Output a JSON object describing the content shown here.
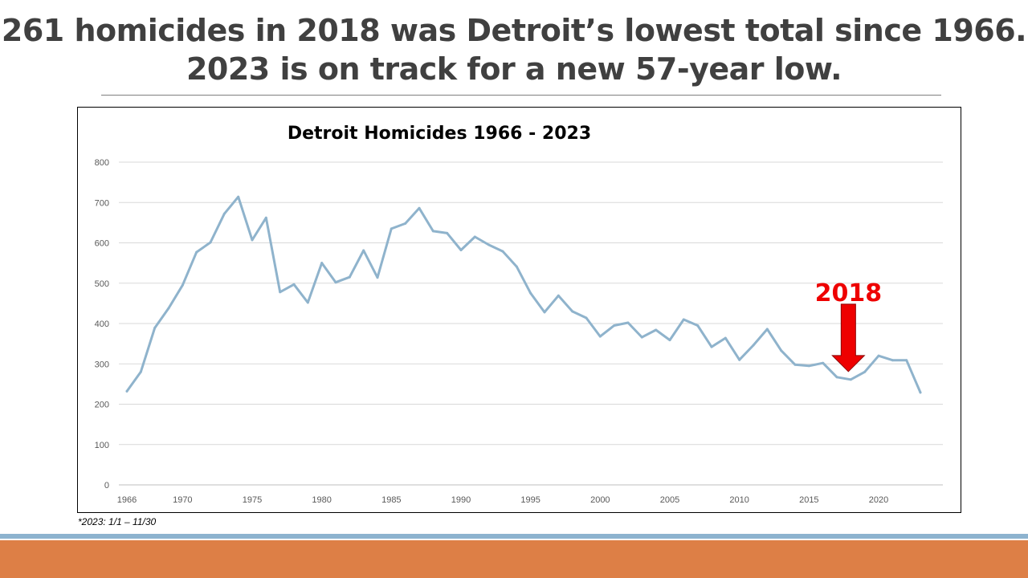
{
  "slide": {
    "title_line1": "261 homicides in 2018 was Detroit’s lowest total since 1966.",
    "title_line2": "2023 is on track for a new 57-year low.",
    "footnote": "*2023: 1/1 – 11/30"
  },
  "colors": {
    "line": "#8fb3cc",
    "grid": "#d9d9d9",
    "annotation": "#ee0000",
    "stripe_blue": "#8db3cf",
    "stripe_orange": "#dd7f46"
  },
  "chart_data": {
    "type": "line",
    "title": "Detroit Homicides 1966 - 2023",
    "xlabel": "",
    "ylabel": "",
    "ylim": [
      0,
      800
    ],
    "yticks": [
      0,
      100,
      200,
      300,
      400,
      500,
      600,
      700,
      800
    ],
    "xticks": [
      1966,
      1970,
      1975,
      1980,
      1985,
      1990,
      1995,
      2000,
      2005,
      2010,
      2015,
      2020
    ],
    "grid": true,
    "legend": "none",
    "series": [
      {
        "name": "Detroit Homicides",
        "x": [
          1966,
          1967,
          1968,
          1969,
          1970,
          1971,
          1972,
          1973,
          1974,
          1975,
          1976,
          1977,
          1978,
          1979,
          1980,
          1981,
          1982,
          1983,
          1984,
          1985,
          1986,
          1987,
          1988,
          1989,
          1990,
          1991,
          1992,
          1993,
          1994,
          1995,
          1996,
          1997,
          1998,
          1999,
          2000,
          2001,
          2002,
          2003,
          2004,
          2005,
          2006,
          2007,
          2008,
          2009,
          2010,
          2011,
          2012,
          2013,
          2014,
          2015,
          2016,
          2017,
          2018,
          2019,
          2020,
          2021,
          2022,
          2023
        ],
        "values": [
          232,
          280,
          389,
          438,
          495,
          577,
          601,
          672,
          714,
          607,
          662,
          478,
          497,
          452,
          550,
          502,
          515,
          581,
          514,
          635,
          648,
          686,
          629,
          624,
          582,
          615,
          595,
          579,
          541,
          475,
          428,
          469,
          430,
          414,
          368,
          395,
          402,
          366,
          384,
          359,
          410,
          395,
          342,
          364,
          310,
          346,
          386,
          333,
          298,
          295,
          302,
          267,
          261,
          280,
          320,
          309,
          309,
          229
        ]
      }
    ],
    "annotations": [
      {
        "label": "2018",
        "year": 2018,
        "value": 261,
        "type": "arrow-down"
      }
    ]
  }
}
